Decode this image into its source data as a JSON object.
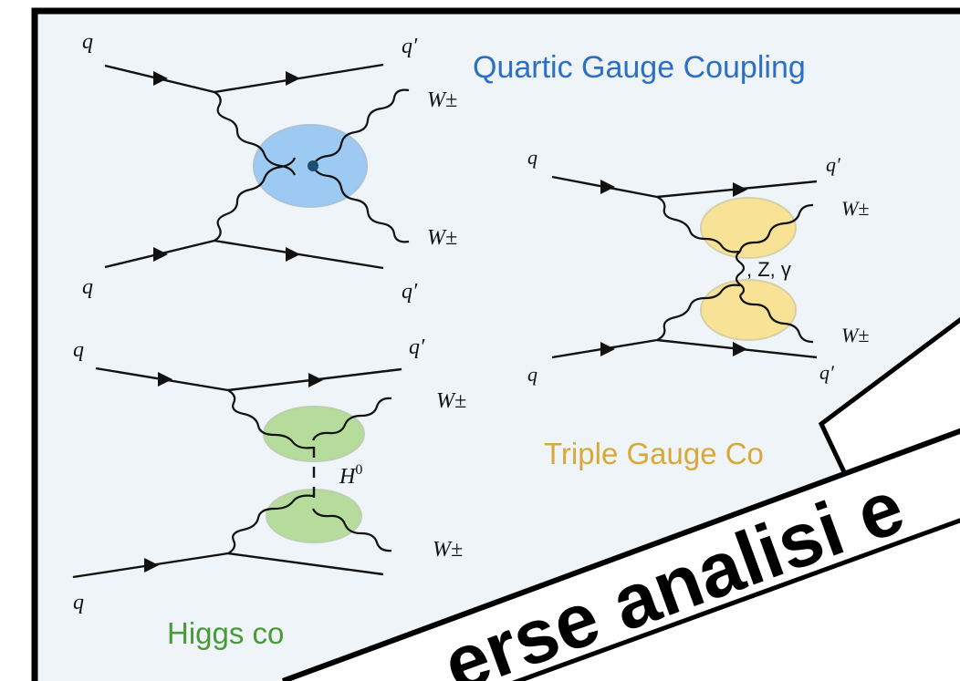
{
  "diagrams": {
    "quartic": {
      "title": "Quartic Gauge Coupling",
      "q_top_left": "q",
      "q_top_right": "q′",
      "w_top": "W±",
      "w_bottom": "W±",
      "q_bottom_left": "q",
      "q_bottom_right": "q′"
    },
    "triple": {
      "title": "Triple Gauge Co",
      "q_top_left": "q",
      "q_top_right": "q′",
      "w_top": "W±",
      "mediator": ", Z, γ",
      "w_bottom": "W±",
      "q_bottom_left": "q",
      "q_bottom_right": "q′"
    },
    "higgs": {
      "title": "Higgs co",
      "q_top_left": "q",
      "q_top_right": "q′",
      "w_top": "W±",
      "mediator_base": "H",
      "mediator_sup": "0",
      "w_bottom": "W±",
      "q_bottom_left": "q"
    }
  },
  "banner": {
    "text": "erse analisi e"
  },
  "colors": {
    "frame_bg": "#eef4f7",
    "quartic_blob": "#9ccaf2",
    "triple_blob": "#f7e296",
    "higgs_blob": "#b6dc9c",
    "quartic_title": "#2d6fc4",
    "triple_title": "#d8a93a",
    "higgs_title": "#4a9a3a"
  }
}
